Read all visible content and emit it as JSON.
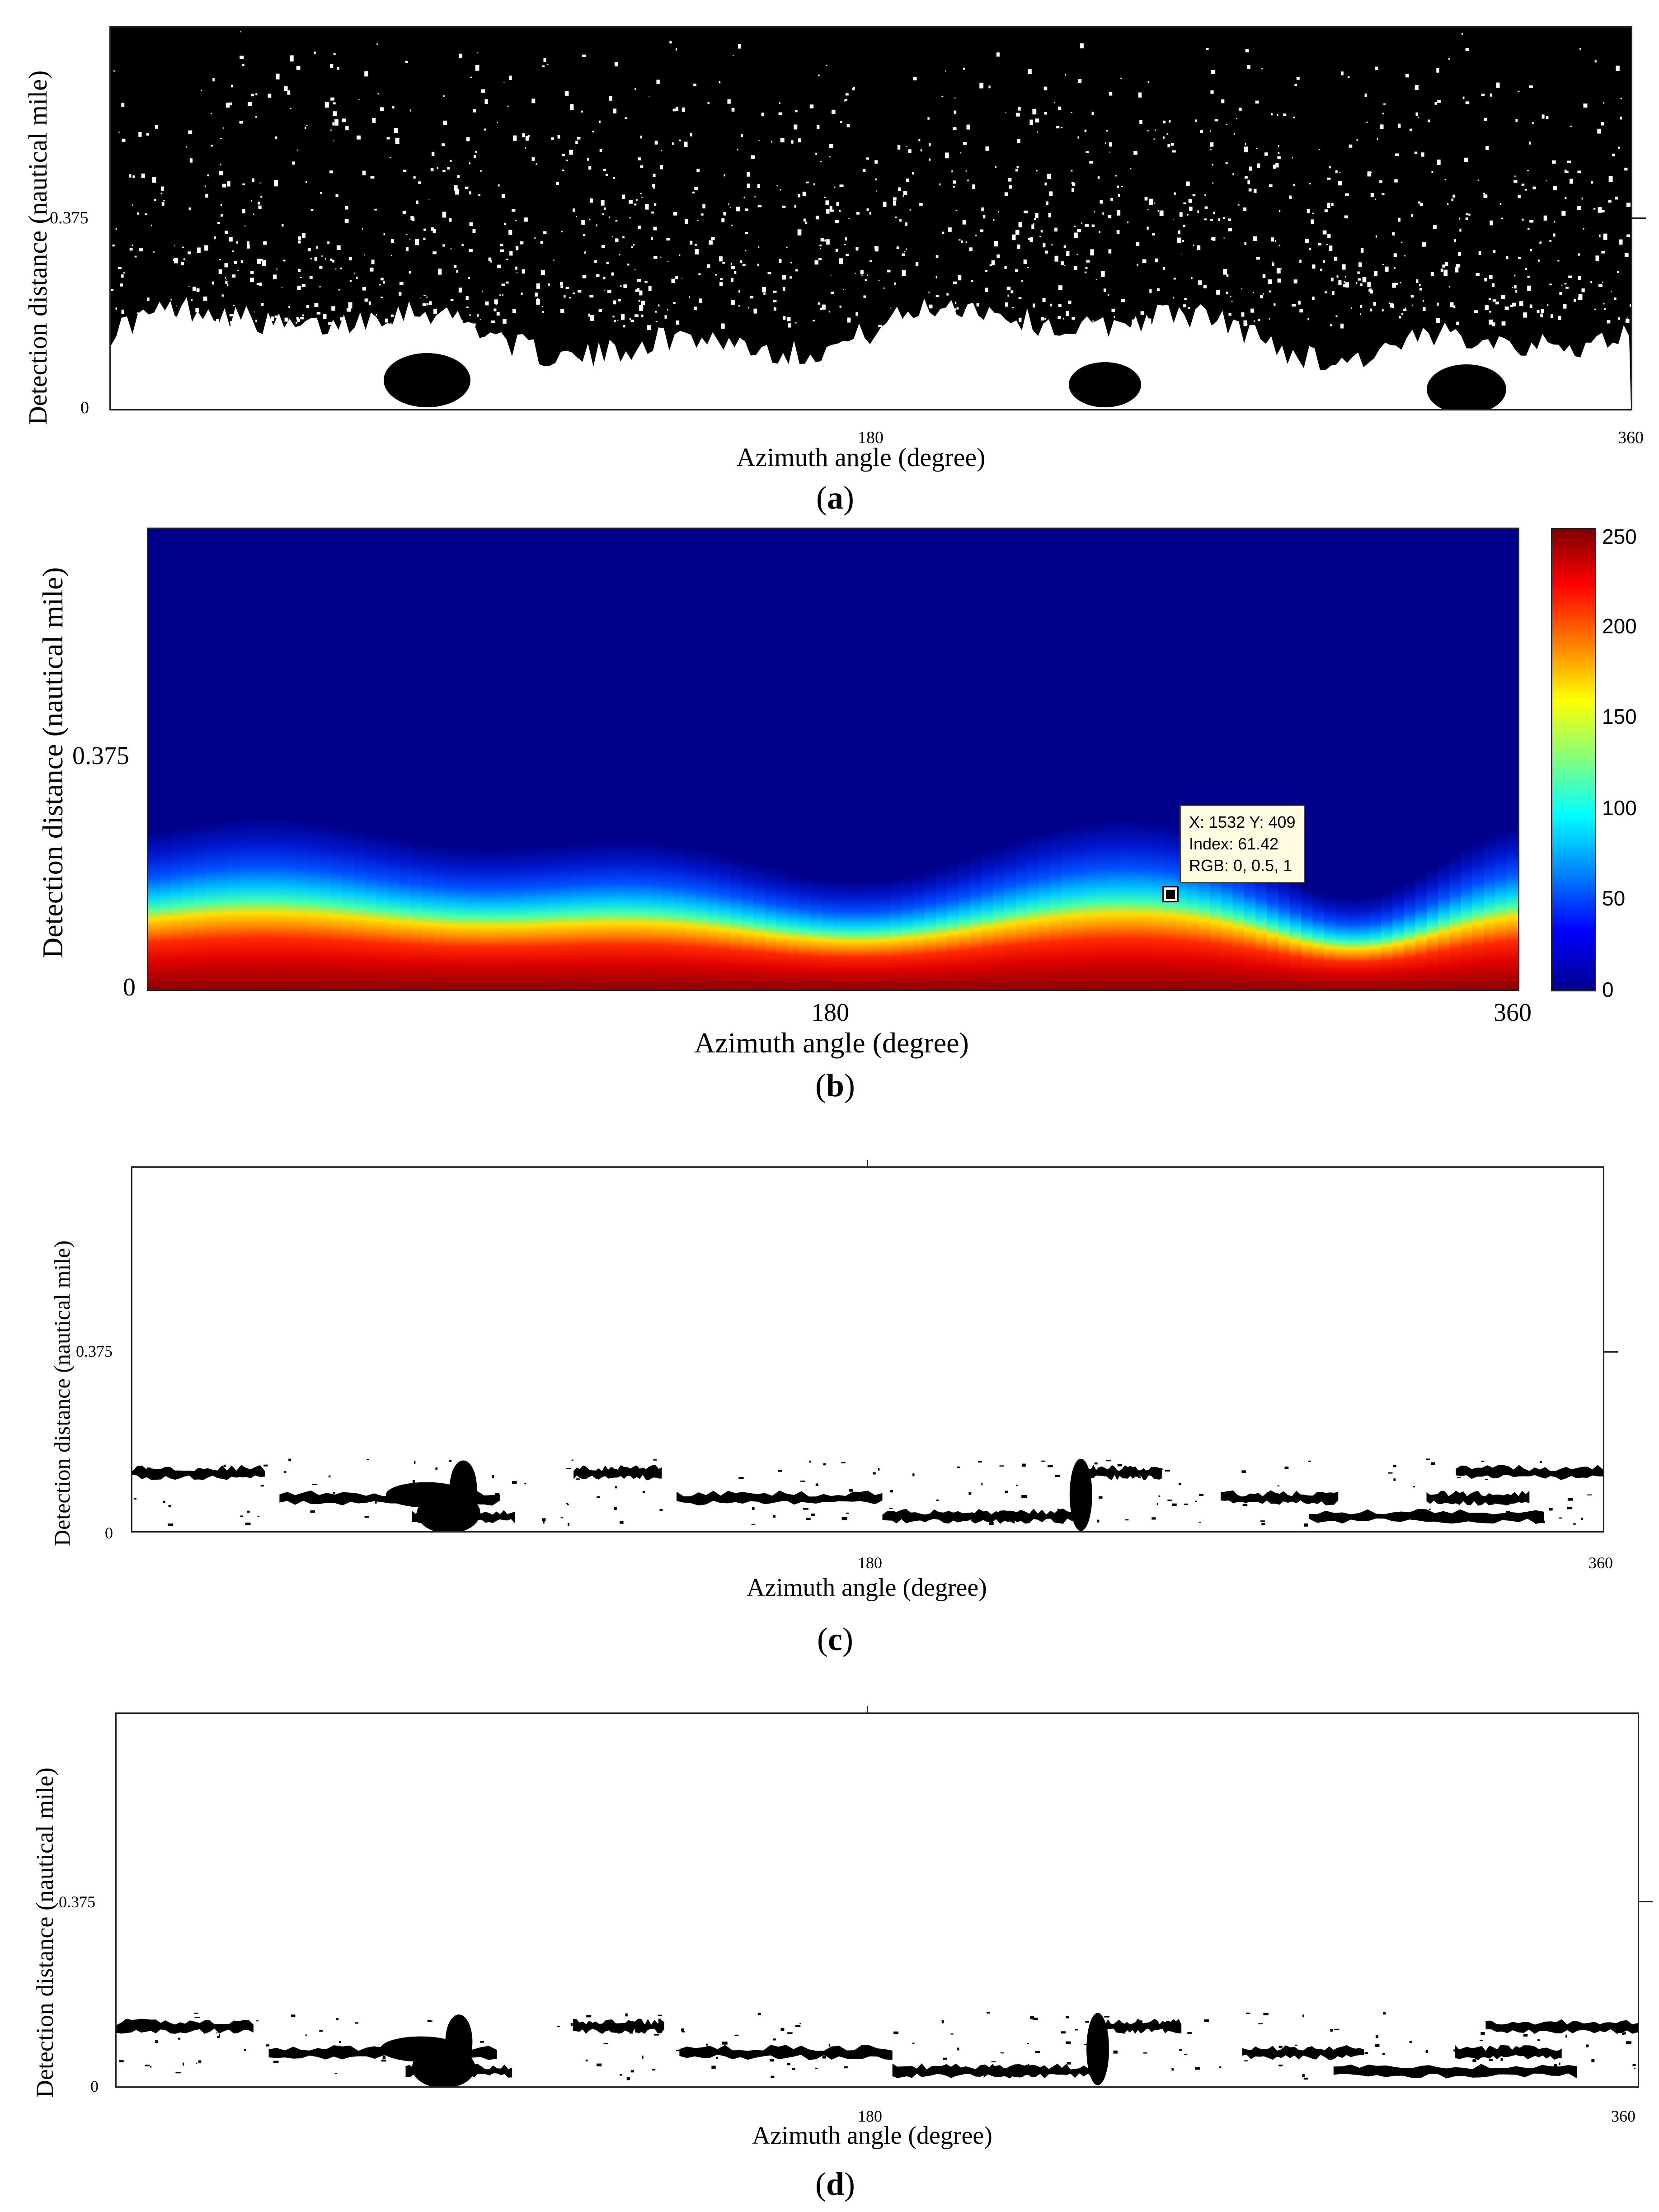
{
  "chart_data": [
    {
      "panel": "a",
      "type": "heatmap",
      "xlabel": "Azimuth angle (degree)",
      "ylabel": "Detection distance (nautical mile)",
      "xticks": [
        "180",
        "360"
      ],
      "yticks": [
        "0",
        "0.375"
      ],
      "caption_letter": "a",
      "colormap": "binary",
      "background": "#000000",
      "foreground": "#ffffff"
    },
    {
      "panel": "b",
      "type": "heatmap",
      "xlabel": "Azimuth angle (degree)",
      "ylabel": "Detection distance (nautical mile)",
      "xticks": [
        "180",
        "360"
      ],
      "yticks": [
        "0",
        "0.375"
      ],
      "caption_letter": "b",
      "colormap": "jet",
      "colorbar_ticks": [
        "250",
        "200",
        "150",
        "100",
        "50",
        "0"
      ],
      "tooltip": {
        "line1": "X: 1532 Y: 409",
        "line2": "Index: 61.42",
        "line3": "RGB: 0, 0.5, 1"
      }
    },
    {
      "panel": "c",
      "type": "heatmap",
      "xlabel": "Azimuth angle (degree)",
      "ylabel": "Detection distance (nautical mile)",
      "xticks": [
        "180",
        "360"
      ],
      "yticks": [
        "0",
        "0.375"
      ],
      "caption_letter": "c",
      "colormap": "binary",
      "background": "#ffffff",
      "foreground": "#000000"
    },
    {
      "panel": "d",
      "type": "heatmap",
      "xlabel": "Azimuth angle (degree)",
      "ylabel": "Detection distance (nautical mile)",
      "xticks": [
        "180",
        "360"
      ],
      "yticks": [
        "0",
        "0.375"
      ],
      "caption_letter": "d",
      "colormap": "binary",
      "background": "#ffffff",
      "foreground": "#000000"
    }
  ]
}
